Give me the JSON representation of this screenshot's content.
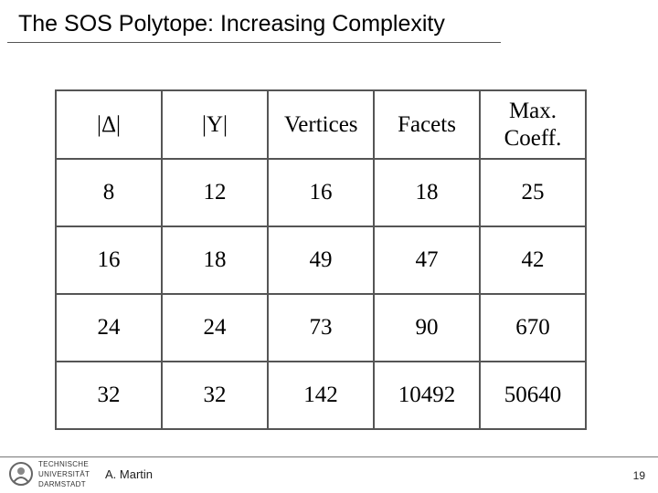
{
  "header": {
    "title": "The SOS Polytope: Increasing Complexity"
  },
  "table": {
    "columns": [
      "|Δ|",
      "|Y|",
      "Vertices",
      "Facets",
      "Max. Coeff."
    ],
    "rows": [
      [
        8,
        12,
        16,
        18,
        25
      ],
      [
        16,
        18,
        49,
        47,
        42
      ],
      [
        24,
        24,
        73,
        90,
        670
      ],
      [
        32,
        32,
        142,
        10492,
        50640
      ]
    ]
  },
  "footer": {
    "logo": [
      "TECHNISCHE",
      "UNIVERSITÄT",
      "DARMSTADT"
    ],
    "author": "A. Martin",
    "page": "19"
  }
}
